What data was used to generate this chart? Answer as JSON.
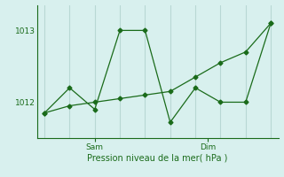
{
  "line1_x": [
    0,
    1,
    2,
    3,
    4,
    5,
    6,
    7,
    8,
    9
  ],
  "line1_y": [
    1011.85,
    1012.2,
    1011.9,
    1013.0,
    1013.0,
    1011.72,
    1012.2,
    1012.0,
    1012.0,
    1013.1
  ],
  "line2_x": [
    0,
    1,
    2,
    3,
    4,
    5,
    6,
    7,
    8,
    9
  ],
  "line2_y": [
    1011.85,
    1011.95,
    1012.0,
    1012.05,
    1012.1,
    1012.15,
    1012.35,
    1012.55,
    1012.7,
    1013.1
  ],
  "line_color": "#1a6b1a",
  "marker": "D",
  "marker_size": 2.5,
  "bg_color": "#d8f0ee",
  "yticks": [
    1012,
    1013
  ],
  "ylim": [
    1011.5,
    1013.35
  ],
  "xlim": [
    -0.3,
    9.3
  ],
  "sam_x": 2.0,
  "dim_x": 6.5,
  "xlabel": "Pression niveau de la mer( hPa )",
  "tick_color": "#1a6b1a",
  "grid_color": "#b8d8d4",
  "figsize": [
    3.2,
    2.0
  ],
  "dpi": 100
}
